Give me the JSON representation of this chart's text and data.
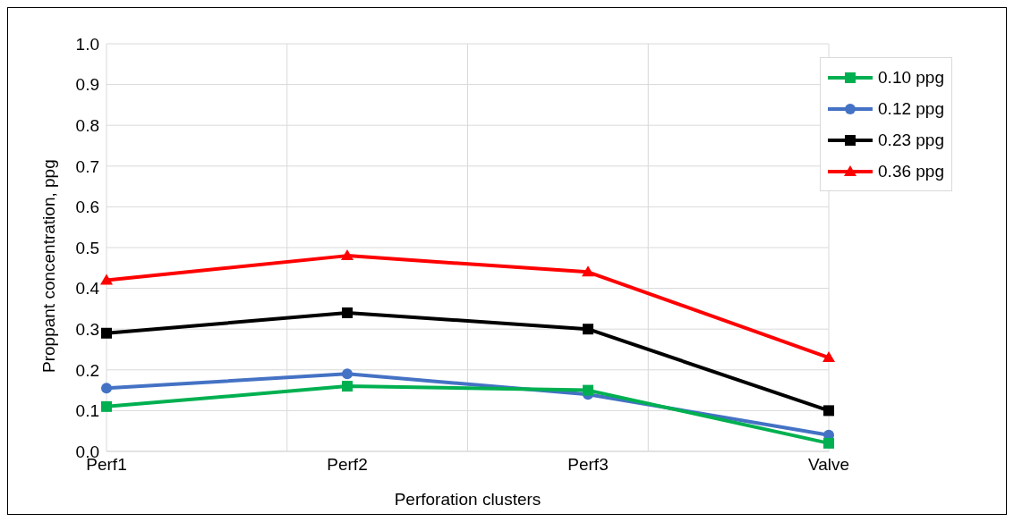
{
  "chart_data": {
    "type": "line",
    "xlabel": "Perforation clusters",
    "ylabel": "Proppant concentration, ppg",
    "categories": [
      "Perf1",
      "Perf2",
      "Perf3",
      "Valve"
    ],
    "series": [
      {
        "name": "0.10 ppg",
        "color": "#00b050",
        "marker": "square",
        "values": [
          0.11,
          0.16,
          0.15,
          0.02
        ]
      },
      {
        "name": "0.12 ppg",
        "color": "#4472c4",
        "marker": "circle",
        "values": [
          0.155,
          0.19,
          0.14,
          0.04
        ]
      },
      {
        "name": "0.23 ppg",
        "color": "#000000",
        "marker": "square",
        "values": [
          0.29,
          0.34,
          0.3,
          0.1
        ]
      },
      {
        "name": "0.36 ppg",
        "color": "#ff0000",
        "marker": "triangle",
        "values": [
          0.42,
          0.48,
          0.44,
          0.23
        ]
      }
    ],
    "ylim": [
      0,
      1
    ],
    "yticks": [
      {
        "value": 0,
        "label": "0.0"
      },
      {
        "value": 0.1,
        "label": "0.1"
      },
      {
        "value": 0.2,
        "label": "0.2"
      },
      {
        "value": 0.3,
        "label": "0.3"
      },
      {
        "value": 0.4,
        "label": "0.4"
      },
      {
        "value": 0.5,
        "label": "0.5"
      },
      {
        "value": 0.6,
        "label": "0.6"
      },
      {
        "value": 0.7,
        "label": "0.7"
      },
      {
        "value": 0.8,
        "label": "0.8"
      },
      {
        "value": 0.9,
        "label": "0.9"
      },
      {
        "value": 1,
        "label": "1.0"
      }
    ],
    "grid": true,
    "legend": "top right",
    "line_style": "solid"
  }
}
